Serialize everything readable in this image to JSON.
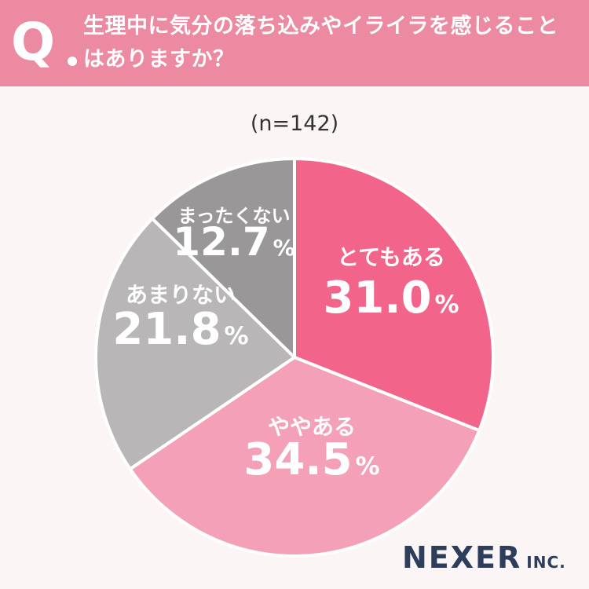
{
  "header": {
    "q_mark": "Q",
    "question_line1": "生理中に気分の落ち込みやイライラを感じること",
    "question_line2": "はありますか？"
  },
  "sample_size": "(n=142)",
  "brand": {
    "main": "NEXER",
    "sub": "INC."
  },
  "chart_data": {
    "type": "pie",
    "unit": "%",
    "slices": [
      {
        "label": "とてもある",
        "value": 31.0,
        "display": "31.0",
        "color": "#f26489"
      },
      {
        "label": "ややある",
        "value": 34.5,
        "display": "34.5",
        "color": "#f4a0b6"
      },
      {
        "label": "あまりない",
        "value": 21.8,
        "display": "21.8",
        "color": "#b8b6b7"
      },
      {
        "label": "まったくない",
        "value": 12.7,
        "display": "12.7",
        "color": "#999798"
      }
    ]
  }
}
